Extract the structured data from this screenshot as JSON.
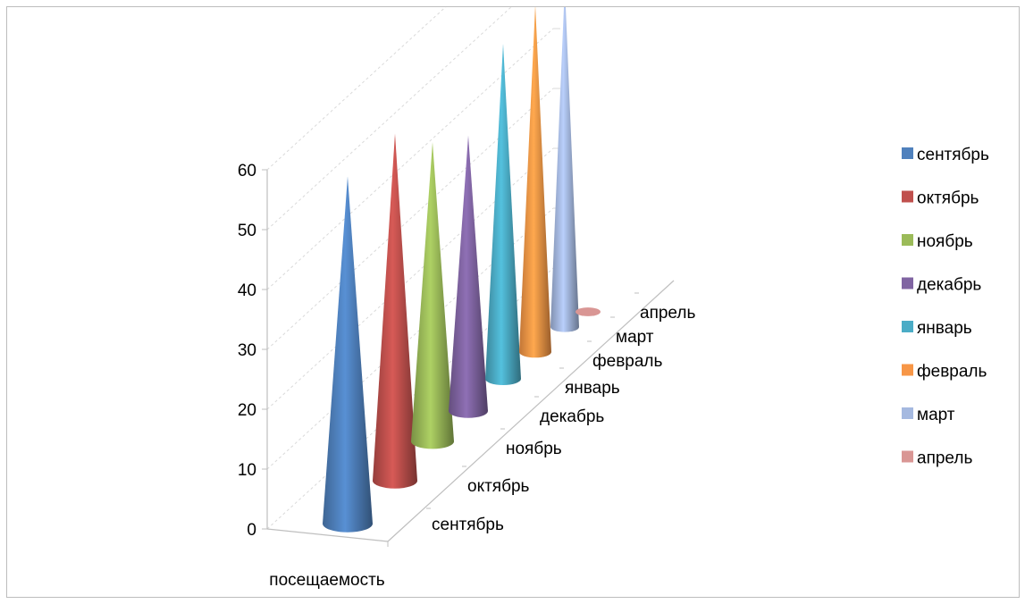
{
  "chart_data": {
    "type": "bar",
    "title": "",
    "xlabel": "",
    "ylabel": "",
    "categories": [
      "посещаемость"
    ],
    "ylim": [
      0,
      60
    ],
    "yticks": [
      0,
      10,
      20,
      30,
      40,
      50,
      60
    ],
    "grid": true,
    "legend": "right",
    "series": [
      {
        "name": "сентябрь",
        "values": [
          58
        ],
        "color": "#4f81bd"
      },
      {
        "name": "октябрь",
        "values": [
          58
        ],
        "color": "#c0504d"
      },
      {
        "name": "ноябрь",
        "values": [
          50
        ],
        "color": "#9bbb59"
      },
      {
        "name": "декабрь",
        "values": [
          46
        ],
        "color": "#8064a2"
      },
      {
        "name": "январь",
        "values": [
          56
        ],
        "color": "#4bacc6"
      },
      {
        "name": "февраль",
        "values": [
          58
        ],
        "color": "#f79646"
      },
      {
        "name": "март",
        "values": [
          57
        ],
        "color": "#a5b9e0"
      },
      {
        "name": "апрель",
        "values": [
          0
        ],
        "color": "#d99694"
      }
    ]
  }
}
